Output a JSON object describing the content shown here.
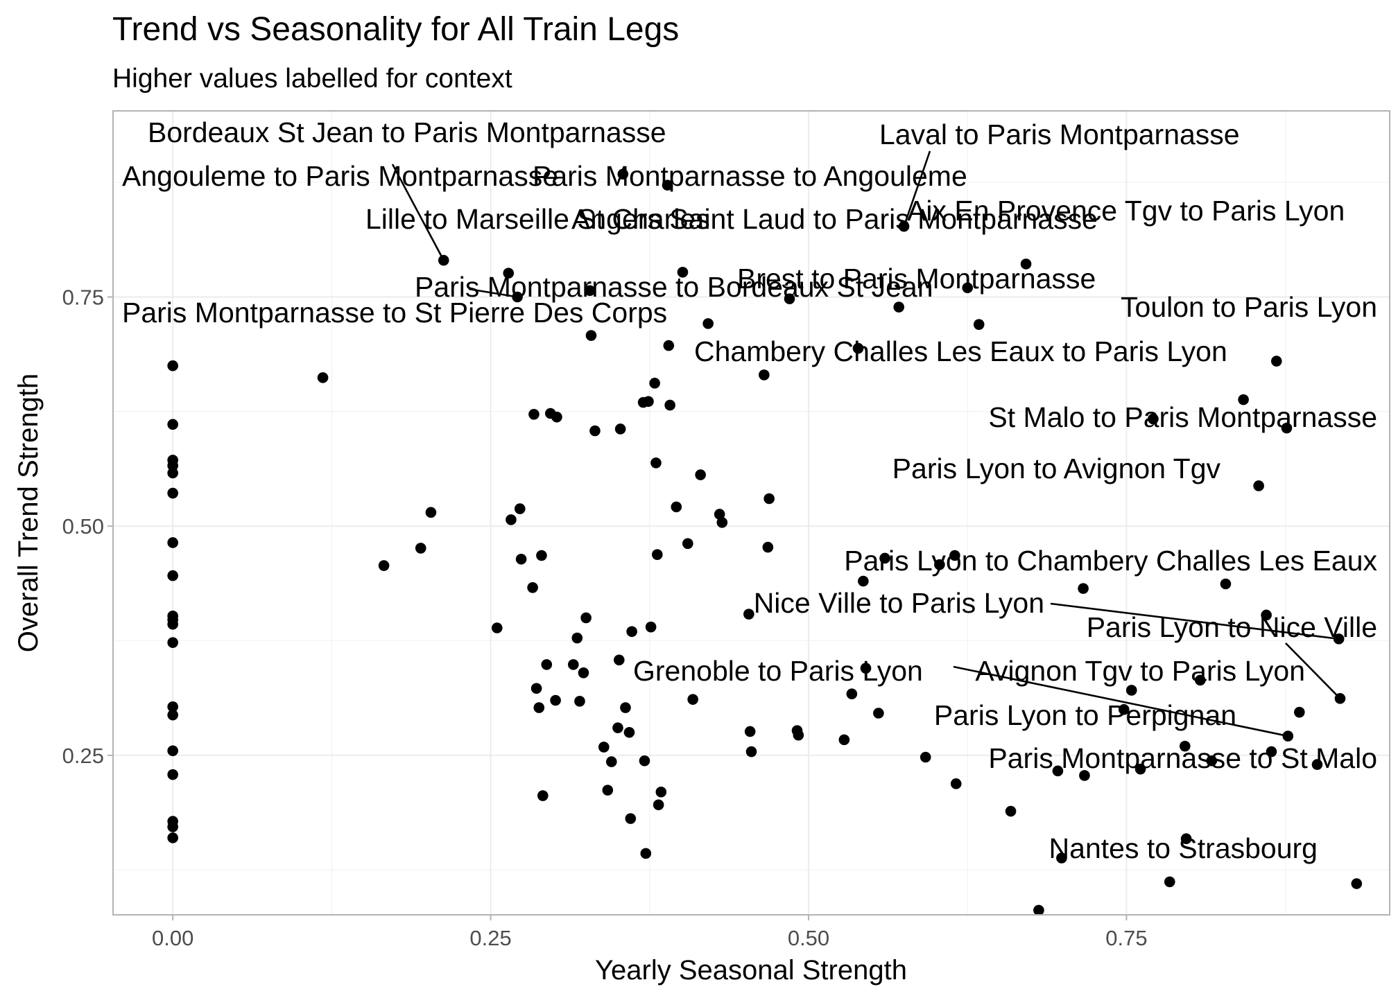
{
  "chart_data": {
    "type": "scatter",
    "title": "Trend vs Seasonality for All Train Legs",
    "subtitle": "Higher values labelled for context",
    "xlabel": "Yearly Seasonal Strength",
    "ylabel": "Overall Trend Strength",
    "xlim": [
      -0.047,
      0.957
    ],
    "ylim": [
      0.076,
      0.953
    ],
    "x_ticks": [
      0.0,
      0.25,
      0.5,
      0.75
    ],
    "x_tick_labels": [
      "0.00",
      "0.25",
      "0.50",
      "0.75"
    ],
    "y_ticks": [
      0.25,
      0.5,
      0.75
    ],
    "y_tick_labels": [
      "0.25",
      "0.50",
      "0.75"
    ],
    "grid": true,
    "legend": "none",
    "points": [
      {
        "x": 0.0,
        "y": 0.675
      },
      {
        "x": 0.0,
        "y": 0.611
      },
      {
        "x": 0.0,
        "y": 0.572
      },
      {
        "x": 0.0,
        "y": 0.566
      },
      {
        "x": 0.0,
        "y": 0.558
      },
      {
        "x": 0.0,
        "y": 0.536
      },
      {
        "x": 0.0,
        "y": 0.482
      },
      {
        "x": 0.0,
        "y": 0.446
      },
      {
        "x": 0.0,
        "y": 0.402
      },
      {
        "x": 0.0,
        "y": 0.398
      },
      {
        "x": 0.0,
        "y": 0.393
      },
      {
        "x": 0.0,
        "y": 0.373
      },
      {
        "x": 0.0,
        "y": 0.303
      },
      {
        "x": 0.0,
        "y": 0.294
      },
      {
        "x": 0.0,
        "y": 0.255
      },
      {
        "x": 0.0,
        "y": 0.229
      },
      {
        "x": 0.0,
        "y": 0.178
      },
      {
        "x": 0.0,
        "y": 0.172
      },
      {
        "x": 0.0,
        "y": 0.16
      },
      {
        "x": 0.118,
        "y": 0.662
      },
      {
        "x": 0.166,
        "y": 0.457
      },
      {
        "x": 0.195,
        "y": 0.476
      },
      {
        "x": 0.203,
        "y": 0.515
      },
      {
        "x": 0.213,
        "y": 0.79
      },
      {
        "x": 0.255,
        "y": 0.389
      },
      {
        "x": 0.264,
        "y": 0.776
      },
      {
        "x": 0.266,
        "y": 0.507
      },
      {
        "x": 0.271,
        "y": 0.75
      },
      {
        "x": 0.273,
        "y": 0.519
      },
      {
        "x": 0.274,
        "y": 0.464
      },
      {
        "x": 0.283,
        "y": 0.433
      },
      {
        "x": 0.284,
        "y": 0.622
      },
      {
        "x": 0.286,
        "y": 0.323
      },
      {
        "x": 0.288,
        "y": 0.302
      },
      {
        "x": 0.29,
        "y": 0.468
      },
      {
        "x": 0.291,
        "y": 0.206
      },
      {
        "x": 0.294,
        "y": 0.349
      },
      {
        "x": 0.297,
        "y": 0.623
      },
      {
        "x": 0.301,
        "y": 0.31
      },
      {
        "x": 0.302,
        "y": 0.619
      },
      {
        "x": 0.315,
        "y": 0.349
      },
      {
        "x": 0.318,
        "y": 0.378
      },
      {
        "x": 0.32,
        "y": 0.309
      },
      {
        "x": 0.323,
        "y": 0.34
      },
      {
        "x": 0.325,
        "y": 0.4
      },
      {
        "x": 0.328,
        "y": 0.757
      },
      {
        "x": 0.329,
        "y": 0.708
      },
      {
        "x": 0.332,
        "y": 0.604
      },
      {
        "x": 0.339,
        "y": 0.259
      },
      {
        "x": 0.342,
        "y": 0.212
      },
      {
        "x": 0.345,
        "y": 0.243
      },
      {
        "x": 0.35,
        "y": 0.28
      },
      {
        "x": 0.351,
        "y": 0.354
      },
      {
        "x": 0.352,
        "y": 0.606
      },
      {
        "x": 0.354,
        "y": 0.884
      },
      {
        "x": 0.356,
        "y": 0.302
      },
      {
        "x": 0.359,
        "y": 0.275
      },
      {
        "x": 0.36,
        "y": 0.181
      },
      {
        "x": 0.361,
        "y": 0.385
      },
      {
        "x": 0.37,
        "y": 0.635
      },
      {
        "x": 0.371,
        "y": 0.244
      },
      {
        "x": 0.372,
        "y": 0.143
      },
      {
        "x": 0.374,
        "y": 0.636
      },
      {
        "x": 0.376,
        "y": 0.39
      },
      {
        "x": 0.379,
        "y": 0.656
      },
      {
        "x": 0.38,
        "y": 0.569
      },
      {
        "x": 0.381,
        "y": 0.469
      },
      {
        "x": 0.382,
        "y": 0.196
      },
      {
        "x": 0.384,
        "y": 0.21
      },
      {
        "x": 0.389,
        "y": 0.872
      },
      {
        "x": 0.39,
        "y": 0.697
      },
      {
        "x": 0.391,
        "y": 0.632
      },
      {
        "x": 0.396,
        "y": 0.521
      },
      {
        "x": 0.401,
        "y": 0.777
      },
      {
        "x": 0.405,
        "y": 0.481
      },
      {
        "x": 0.409,
        "y": 0.311
      },
      {
        "x": 0.415,
        "y": 0.556
      },
      {
        "x": 0.421,
        "y": 0.721
      },
      {
        "x": 0.43,
        "y": 0.513
      },
      {
        "x": 0.432,
        "y": 0.504
      },
      {
        "x": 0.453,
        "y": 0.404
      },
      {
        "x": 0.454,
        "y": 0.276
      },
      {
        "x": 0.455,
        "y": 0.254
      },
      {
        "x": 0.465,
        "y": 0.665
      },
      {
        "x": 0.468,
        "y": 0.477
      },
      {
        "x": 0.469,
        "y": 0.53
      },
      {
        "x": 0.485,
        "y": 0.748
      },
      {
        "x": 0.491,
        "y": 0.277
      },
      {
        "x": 0.492,
        "y": 0.272
      },
      {
        "x": 0.528,
        "y": 0.267
      },
      {
        "x": 0.534,
        "y": 0.317
      },
      {
        "x": 0.539,
        "y": 0.694
      },
      {
        "x": 0.543,
        "y": 0.44
      },
      {
        "x": 0.545,
        "y": 0.345
      },
      {
        "x": 0.555,
        "y": 0.296
      },
      {
        "x": 0.56,
        "y": 0.465
      },
      {
        "x": 0.571,
        "y": 0.739
      },
      {
        "x": 0.575,
        "y": 0.827
      },
      {
        "x": 0.592,
        "y": 0.248
      },
      {
        "x": 0.603,
        "y": 0.458
      },
      {
        "x": 0.615,
        "y": 0.468
      },
      {
        "x": 0.616,
        "y": 0.219
      },
      {
        "x": 0.625,
        "y": 0.76
      },
      {
        "x": 0.634,
        "y": 0.72
      },
      {
        "x": 0.659,
        "y": 0.189
      },
      {
        "x": 0.671,
        "y": 0.786
      },
      {
        "x": 0.681,
        "y": 0.081
      },
      {
        "x": 0.696,
        "y": 0.233
      },
      {
        "x": 0.699,
        "y": 0.138
      },
      {
        "x": 0.716,
        "y": 0.432
      },
      {
        "x": 0.717,
        "y": 0.228
      },
      {
        "x": 0.748,
        "y": 0.3
      },
      {
        "x": 0.754,
        "y": 0.321
      },
      {
        "x": 0.761,
        "y": 0.235
      },
      {
        "x": 0.771,
        "y": 0.617
      },
      {
        "x": 0.784,
        "y": 0.112
      },
      {
        "x": 0.796,
        "y": 0.26
      },
      {
        "x": 0.797,
        "y": 0.159
      },
      {
        "x": 0.808,
        "y": 0.332
      },
      {
        "x": 0.817,
        "y": 0.244
      },
      {
        "x": 0.828,
        "y": 0.437
      },
      {
        "x": 0.842,
        "y": 0.638
      },
      {
        "x": 0.854,
        "y": 0.544
      },
      {
        "x": 0.86,
        "y": 0.403
      },
      {
        "x": 0.864,
        "y": 0.254
      },
      {
        "x": 0.868,
        "y": 0.68
      },
      {
        "x": 0.876,
        "y": 0.607
      },
      {
        "x": 0.877,
        "y": 0.271
      },
      {
        "x": 0.886,
        "y": 0.297
      },
      {
        "x": 0.9,
        "y": 0.24
      },
      {
        "x": 0.917,
        "y": 0.377
      },
      {
        "x": 0.918,
        "y": 0.312
      },
      {
        "x": 0.931,
        "y": 0.11
      }
    ],
    "annotations": [
      {
        "text": "Bordeaux St Jean to Paris Montparnasse",
        "x": 0.354,
        "y": 0.884
      },
      {
        "text": "Laval to Paris Montparnasse",
        "x": 0.575,
        "y": 0.827
      },
      {
        "text": "Angouleme to Paris Montparnasse",
        "x": 0.213,
        "y": 0.79
      },
      {
        "text": "Paris Montparnasse to Angouleme",
        "x": 0.389,
        "y": 0.872
      },
      {
        "text": "Lille to Marseille St Charles",
        "x": 0.264,
        "y": 0.776
      },
      {
        "text": "Angers Saint Laud to Paris Montparnasse",
        "x": 0.401,
        "y": 0.777
      },
      {
        "text": "Aix En Provence Tgv to Paris Lyon",
        "x": 0.671,
        "y": 0.786
      },
      {
        "text": "Brest to Paris Montparnasse",
        "x": 0.571,
        "y": 0.739
      },
      {
        "text": "Paris Montparnasse to Bordeaux St Jean",
        "x": 0.271,
        "y": 0.75
      },
      {
        "text": "Toulon to Paris Lyon",
        "x": 0.868,
        "y": 0.68
      },
      {
        "text": "Paris Montparnasse to St Pierre Des Corps",
        "x": 0.39,
        "y": 0.697
      },
      {
        "text": "Chambery Challes Les Eaux to Paris Lyon",
        "x": 0.842,
        "y": 0.638
      },
      {
        "text": "St Malo to Paris Montparnasse",
        "x": 0.854,
        "y": 0.544
      },
      {
        "text": "Paris Lyon to Avignon Tgv",
        "x": 0.716,
        "y": 0.432
      },
      {
        "text": "Paris Lyon to Chambery Challes Les Eaux",
        "x": 0.86,
        "y": 0.403
      },
      {
        "text": "Nice Ville to Paris Lyon",
        "x": 0.917,
        "y": 0.377
      },
      {
        "text": "Paris Lyon to Nice Ville",
        "x": 0.918,
        "y": 0.312
      },
      {
        "text": "Grenoble to Paris Lyon",
        "x": 0.534,
        "y": 0.317
      },
      {
        "text": "Avignon Tgv to Paris Lyon",
        "x": 0.877,
        "y": 0.271
      },
      {
        "text": "Paris Lyon to Perpignan",
        "x": 0.864,
        "y": 0.254
      },
      {
        "text": "Paris Montparnasse to St Malo",
        "x": 0.9,
        "y": 0.24
      },
      {
        "text": "Nantes to Strasbourg",
        "x": 0.931,
        "y": 0.11
      }
    ]
  }
}
